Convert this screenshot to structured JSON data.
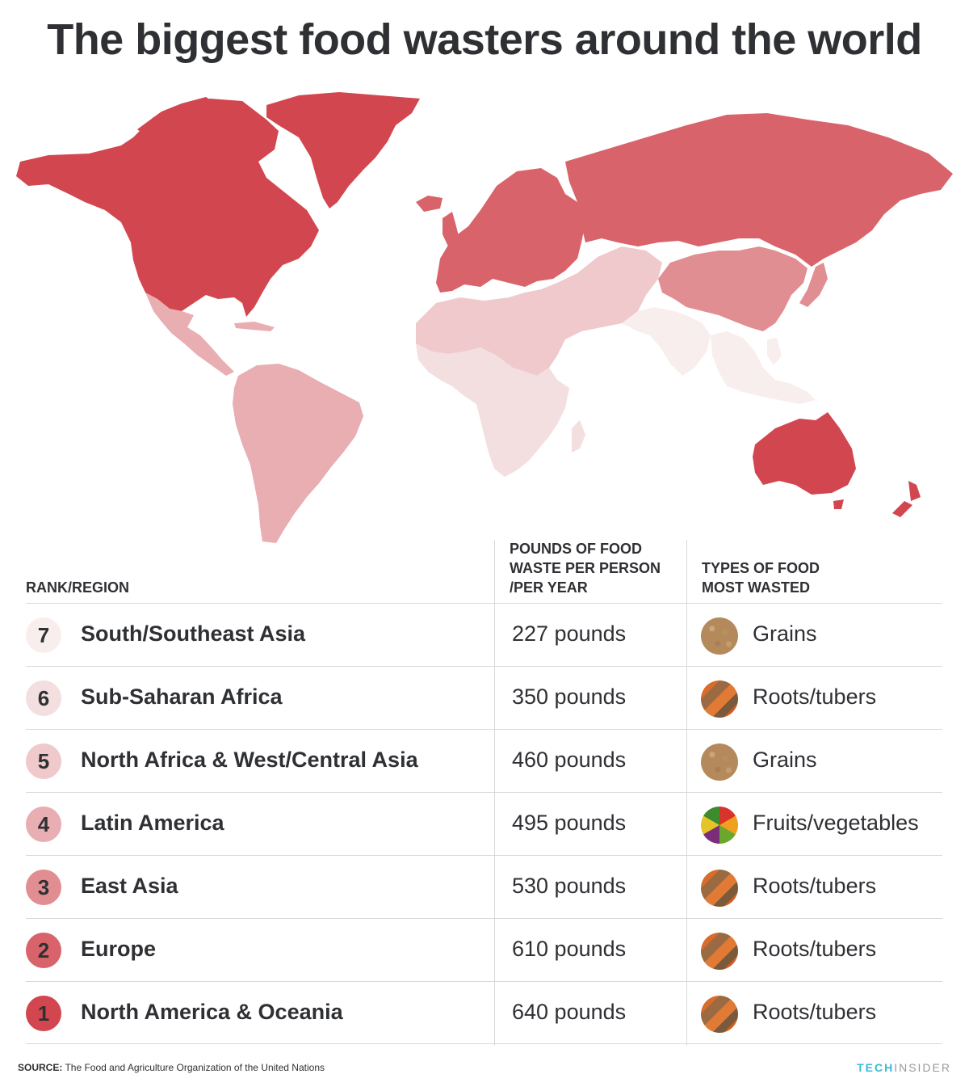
{
  "title": "The biggest food wasters around the world",
  "colors": {
    "rank1": "#d2464f",
    "rank2": "#d9636a",
    "rank3": "#e18e92",
    "rank4": "#e8aeb1",
    "rank5": "#efc9cb",
    "rank6": "#f4dfe0",
    "rank7": "#f9eeee"
  },
  "map": {
    "regions": [
      {
        "name": "North America & Oceania",
        "rank": 1
      },
      {
        "name": "Europe",
        "rank": 2
      },
      {
        "name": "East Asia",
        "rank": 3
      },
      {
        "name": "Latin America",
        "rank": 4
      },
      {
        "name": "North Africa & West/Central Asia",
        "rank": 5
      },
      {
        "name": "Sub-Saharan Africa",
        "rank": 6
      },
      {
        "name": "South/Southeast Asia",
        "rank": 7
      }
    ]
  },
  "table": {
    "headers": {
      "rank_region": "RANK/REGION",
      "pounds_line1": "POUNDS OF FOOD",
      "pounds_line2": "WASTE PER PERSON",
      "pounds_line3": "/PER YEAR",
      "types_line1": "TYPES OF FOOD",
      "types_line2": "MOST WASTED"
    },
    "rows": [
      {
        "rank": "7",
        "region": "South/Southeast Asia",
        "pounds": "227 pounds",
        "food": "Grains",
        "icon": "grains-icon"
      },
      {
        "rank": "6",
        "region": "Sub-Saharan Africa",
        "pounds": "350 pounds",
        "food": "Roots/tubers",
        "icon": "roots-tubers-icon"
      },
      {
        "rank": "5",
        "region": "North Africa & West/Central Asia",
        "pounds": "460 pounds",
        "food": "Grains",
        "icon": "grains-icon"
      },
      {
        "rank": "4",
        "region": "Latin America",
        "pounds": "495 pounds",
        "food": "Fruits/vegetables",
        "icon": "fruits-vegetables-icon"
      },
      {
        "rank": "3",
        "region": "East Asia",
        "pounds": "530 pounds",
        "food": "Roots/tubers",
        "icon": "roots-tubers-icon"
      },
      {
        "rank": "2",
        "region": "Europe",
        "pounds": "610 pounds",
        "food": "Roots/tubers",
        "icon": "roots-tubers-icon"
      },
      {
        "rank": "1",
        "region": "North America & Oceania",
        "pounds": "640 pounds",
        "food": "Roots/tubers",
        "icon": "roots-tubers-icon"
      }
    ]
  },
  "source": {
    "label": "SOURCE:",
    "text": "The Food and Agriculture Organization of the United Nations"
  },
  "logo": {
    "part1": "TECH",
    "part2": "INSIDER"
  }
}
